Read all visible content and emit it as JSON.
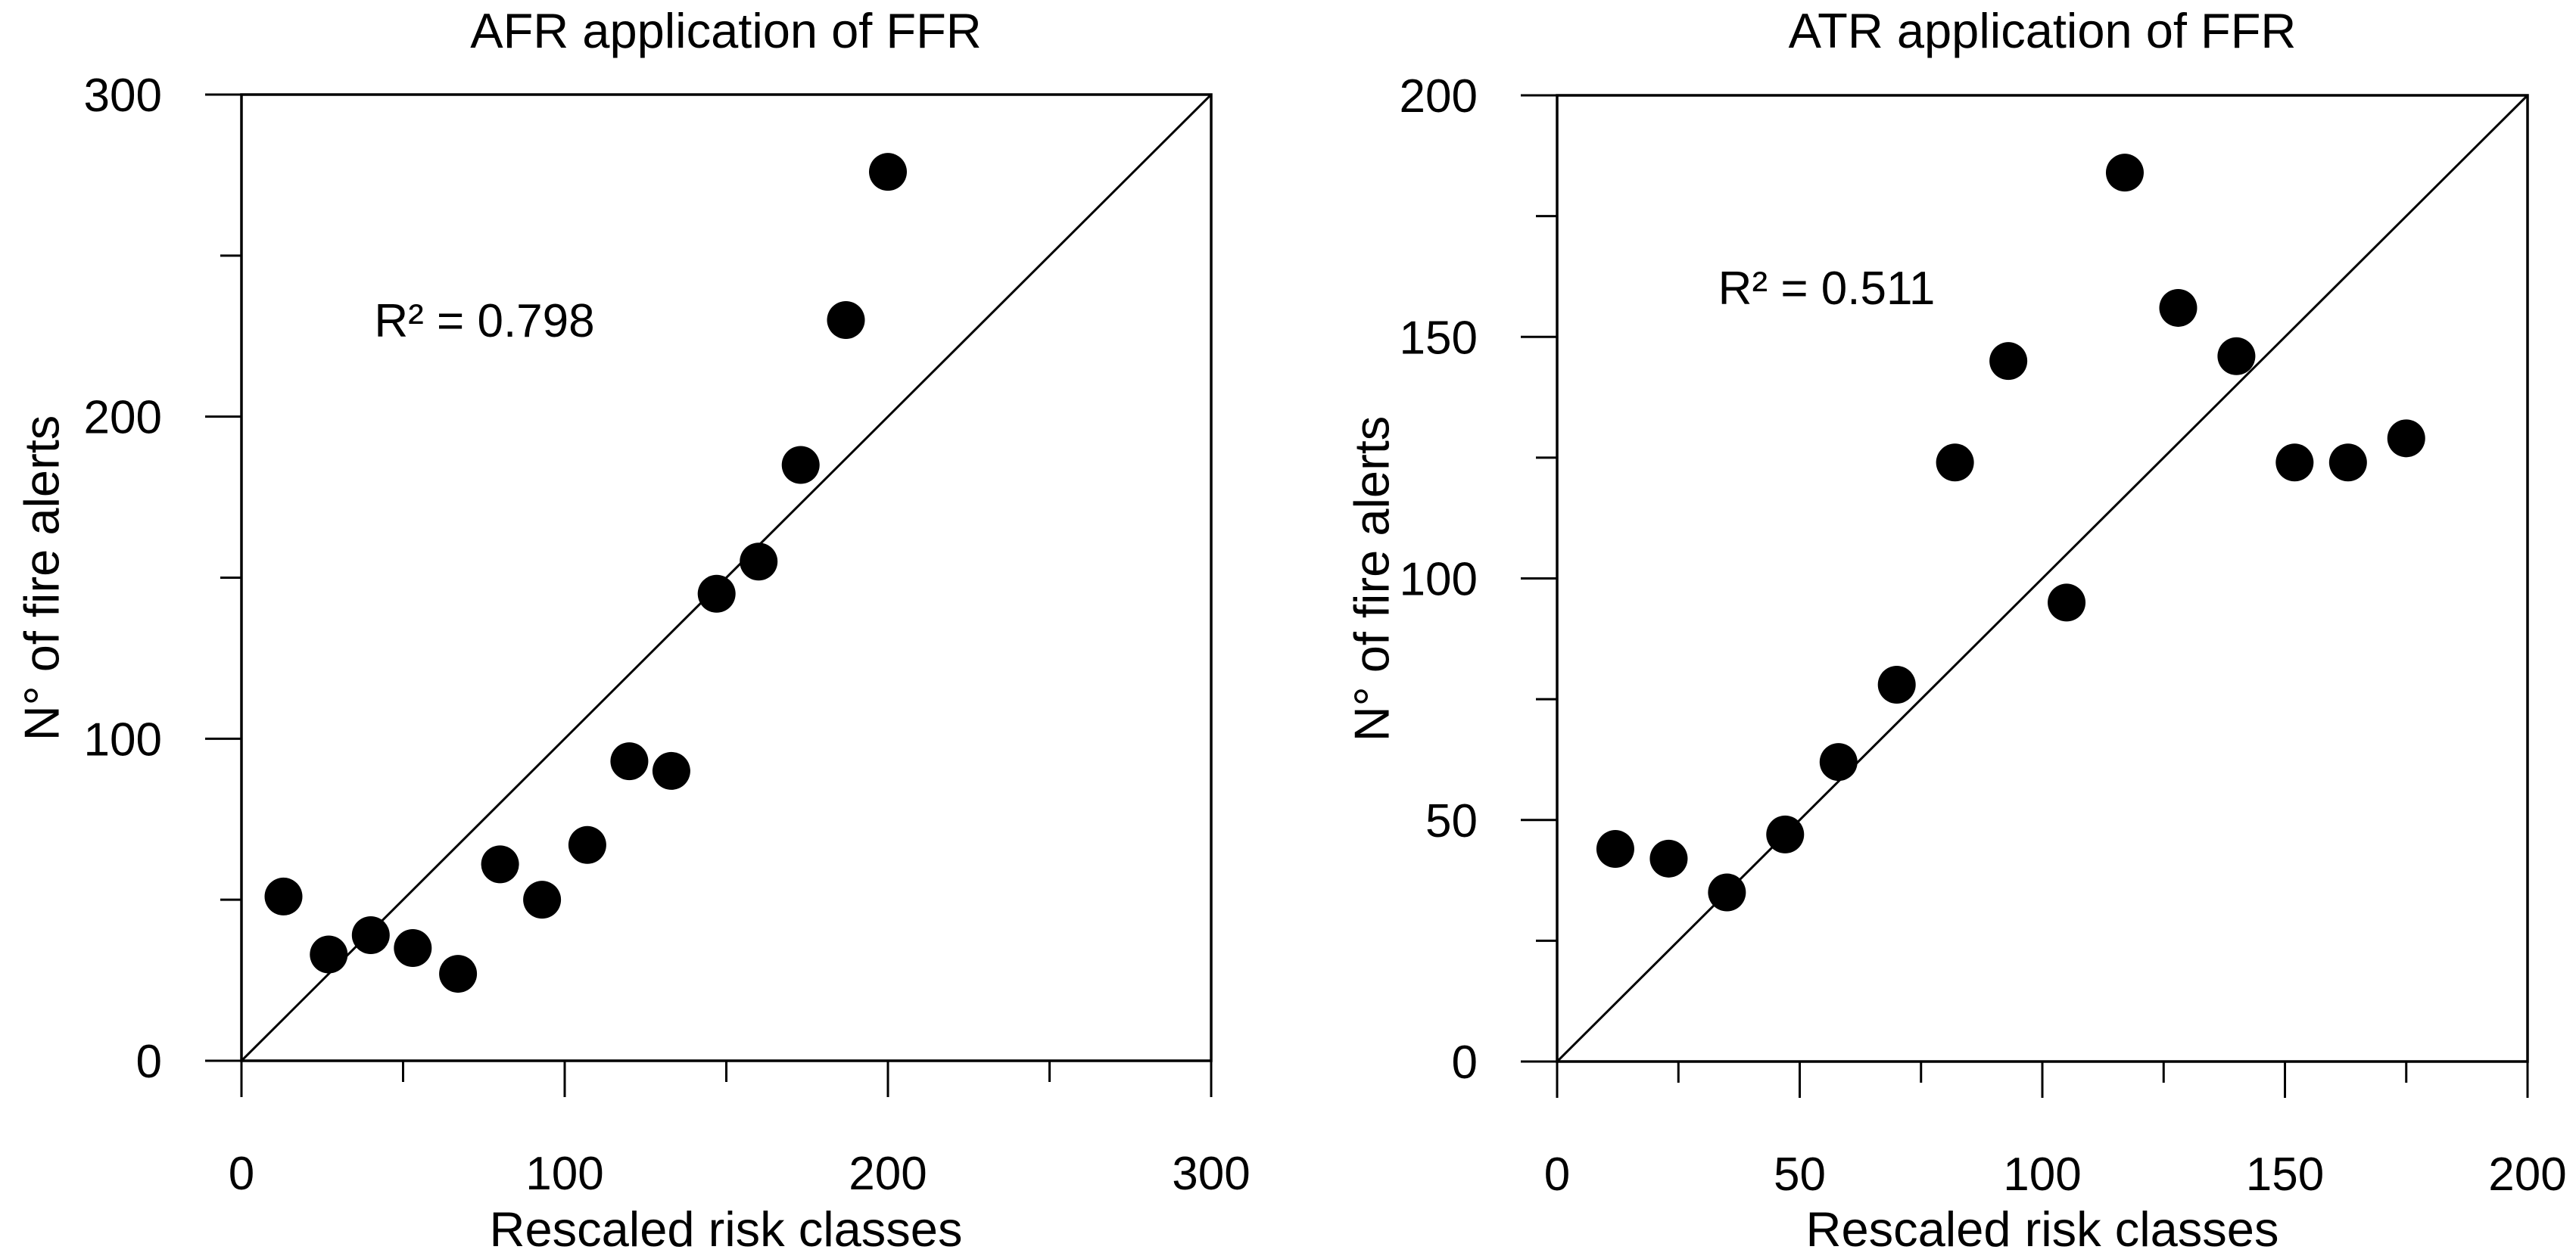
{
  "figure": {
    "background": "#ffffff",
    "marker_color": "#000000",
    "axis_color": "#000000",
    "line_color": "#000000"
  },
  "chart_data": [
    {
      "type": "scatter",
      "title": "AFR application of FFR",
      "xlabel": "Rescaled risk classes",
      "ylabel": "N° of fire alerts",
      "annotation": "R² = 0.798",
      "r_squared": 0.798,
      "xlim": [
        0,
        300
      ],
      "ylim": [
        0,
        300
      ],
      "x_major_ticks": [
        0,
        100,
        200,
        300
      ],
      "x_minor_ticks": [
        50,
        150,
        250
      ],
      "y_major_ticks": [
        0,
        100,
        200,
        300
      ],
      "y_minor_ticks": [
        50,
        150,
        250
      ],
      "identity_line": {
        "from": [
          0,
          0
        ],
        "to": [
          300,
          300
        ]
      },
      "legend": "none",
      "grid": false,
      "points": [
        [
          13,
          51
        ],
        [
          27,
          33
        ],
        [
          40,
          39
        ],
        [
          53,
          35
        ],
        [
          67,
          27
        ],
        [
          80,
          61
        ],
        [
          93,
          50
        ],
        [
          107,
          67
        ],
        [
          120,
          93
        ],
        [
          133,
          90
        ],
        [
          147,
          145
        ],
        [
          160,
          155
        ],
        [
          173,
          185
        ],
        [
          187,
          230
        ],
        [
          200,
          276
        ]
      ]
    },
    {
      "type": "scatter",
      "title": "ATR application of FFR",
      "xlabel": "Rescaled risk classes",
      "ylabel": "N° of fire alerts",
      "annotation": "R² = 0.511",
      "r_squared": 0.511,
      "xlim": [
        0,
        200
      ],
      "ylim": [
        0,
        200
      ],
      "x_major_ticks": [
        0,
        50,
        100,
        150,
        200
      ],
      "x_minor_ticks": [
        25,
        75,
        125,
        175
      ],
      "y_major_ticks": [
        0,
        50,
        100,
        150,
        200
      ],
      "y_minor_ticks": [
        25,
        75,
        125,
        175
      ],
      "identity_line": {
        "from": [
          0,
          0
        ],
        "to": [
          200,
          200
        ]
      },
      "legend": "none",
      "grid": false,
      "points": [
        [
          12,
          44
        ],
        [
          23,
          42
        ],
        [
          35,
          35
        ],
        [
          47,
          47
        ],
        [
          58,
          62
        ],
        [
          70,
          78
        ],
        [
          82,
          124
        ],
        [
          93,
          145
        ],
        [
          105,
          95
        ],
        [
          117,
          184
        ],
        [
          128,
          156
        ],
        [
          140,
          146
        ],
        [
          152,
          124
        ],
        [
          163,
          124
        ],
        [
          175,
          129
        ]
      ]
    }
  ]
}
